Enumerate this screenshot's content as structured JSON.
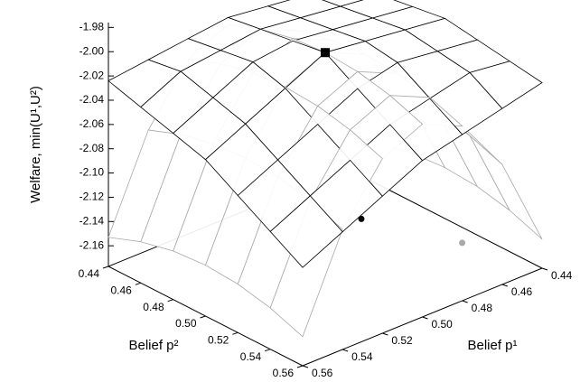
{
  "chart_data": {
    "type": "surface3d",
    "zlabel": "Welfare, min(U¹,U²)",
    "xlabel": "Belief p¹",
    "ylabel": "Belief p²",
    "xlim": [
      0.44,
      0.56
    ],
    "ylim": [
      0.44,
      0.56
    ],
    "zlim": [
      -2.177,
      -1.976
    ],
    "xticks": [
      0.44,
      0.46,
      0.48,
      {
        "value": 0.5,
        "label": "0.50"
      },
      0.52,
      0.54,
      0.56
    ],
    "yticks": [
      0.44,
      0.46,
      0.48,
      {
        "value": 0.5,
        "label": "0.50"
      },
      0.52,
      0.54,
      0.56
    ],
    "zticks": [
      -1.98,
      {
        "value": -2.0,
        "label": "-2.00"
      },
      -2.02,
      -2.04,
      -2.06,
      -2.08,
      {
        "value": -2.1,
        "label": "-2.10"
      },
      -2.12,
      -2.14,
      -2.16
    ],
    "x": [
      0.44,
      0.46,
      0.48,
      0.5,
      0.52,
      0.54,
      0.56
    ],
    "y": [
      0.44,
      0.46,
      0.48,
      0.5,
      0.52,
      0.54,
      0.56
    ],
    "surfaces": [
      {
        "color": "#a8a8a8",
        "z": [
          [
            -2.153,
            -2.143,
            -2.137,
            -2.135,
            -2.137,
            -2.143,
            -2.153
          ],
          [
            -2.078,
            -2.068,
            -2.062,
            -2.06,
            -2.062,
            -2.068,
            -2.078
          ],
          [
            -2.033,
            -2.023,
            -2.017,
            -2.015,
            -2.017,
            -2.023,
            -2.033
          ],
          [
            -2.018,
            -2.008,
            -2.002,
            -2.0,
            -2.002,
            -2.008,
            -2.018
          ],
          [
            -2.033,
            -2.023,
            -2.017,
            -2.015,
            -2.017,
            -2.023,
            -2.033
          ],
          [
            -2.078,
            -2.068,
            -2.062,
            -2.06,
            -2.062,
            -2.068,
            -2.078
          ],
          [
            -2.153,
            -2.143,
            -2.137,
            -2.135,
            -2.137,
            -2.143,
            -2.153
          ]
        ]
      },
      {
        "color": "#000000",
        "z": [
          [
            -2.024,
            -2.02,
            -2.016,
            -2.012,
            -2.016,
            -2.02,
            -2.024
          ],
          [
            -2.02,
            -2.016,
            -2.012,
            -2.008,
            -2.012,
            -2.016,
            -2.032
          ],
          [
            -2.016,
            -2.012,
            -2.008,
            -2.004,
            -2.008,
            -2.024,
            -2.04
          ],
          [
            -2.012,
            -2.008,
            -2.004,
            -2.0,
            -2.016,
            -2.032,
            -2.048
          ],
          [
            -2.016,
            -2.012,
            -2.008,
            -2.016,
            -2.032,
            -2.048,
            -2.064
          ],
          [
            -2.02,
            -2.016,
            -2.024,
            -2.032,
            -2.048,
            -2.064,
            -2.08
          ],
          [
            -2.024,
            -2.032,
            -2.04,
            -2.048,
            -2.064,
            -2.08,
            -2.096
          ]
        ]
      }
    ],
    "points": [
      {
        "x": 0.5,
        "y": 0.5,
        "z": -2.0,
        "color": "#000000",
        "marker": "square"
      },
      {
        "x": 0.49,
        "y": 0.51,
        "z": -2.137,
        "color": "#000000",
        "marker": "circle"
      },
      {
        "x": 0.463,
        "y": 0.539,
        "z": -2.155,
        "color": "#a8a8a8",
        "marker": "circle"
      }
    ]
  }
}
